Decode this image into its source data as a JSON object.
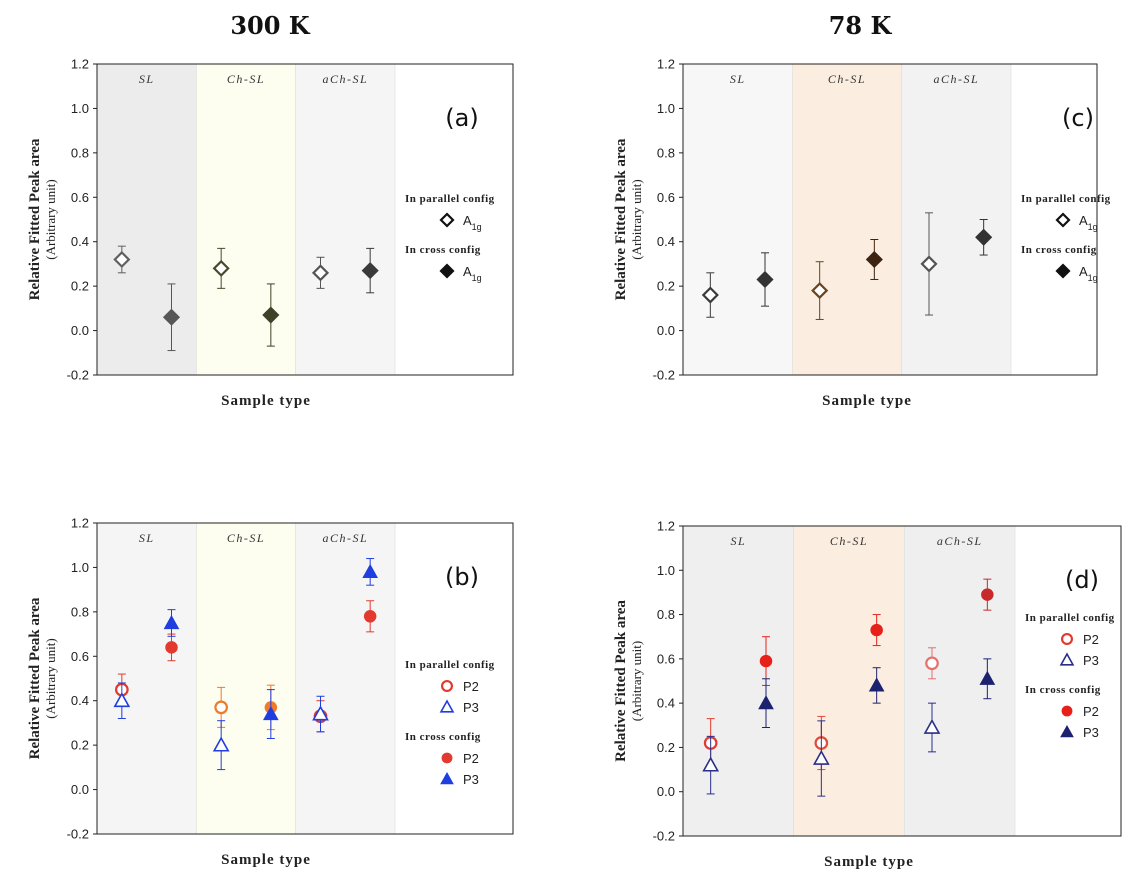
{
  "column_titles": [
    "300 K",
    "78 K"
  ],
  "chart_data": [
    {
      "panel": "(a)",
      "type": "scatter",
      "ylabel": "Relative Fitted Peak area",
      "ylabel_sub": "(Arbitrary unit)",
      "xlabel": "Sample type",
      "ylim": [
        -0.2,
        1.2
      ],
      "yticks": [
        "-0.2",
        "0.0",
        "0.2",
        "0.4",
        "0.6",
        "0.8",
        "1.0",
        "1.2"
      ],
      "regions": [
        {
          "label": "SL",
          "color": "#ececec"
        },
        {
          "label": "Ch-SL",
          "color": "#fdfdf0"
        },
        {
          "label": "aCh-SL",
          "color": "#f5f5f5"
        }
      ],
      "legend": {
        "groups": [
          {
            "heading": "In parallel config",
            "entries": [
              {
                "label": "A",
                "sub": "1g",
                "marker": "diamond-open",
                "color": "#111111"
              }
            ]
          },
          {
            "heading": "In cross config",
            "entries": [
              {
                "label": "A",
                "sub": "1g",
                "marker": "diamond-filled",
                "color": "#111111"
              }
            ]
          }
        ]
      },
      "series": [
        {
          "marker": "diamond-open",
          "points": [
            {
              "pos": 0.25,
              "y": 0.32,
              "err": 0.06,
              "color": "#606060"
            },
            {
              "pos": 1.25,
              "y": 0.28,
              "err": 0.09,
              "color": "#474a2a"
            },
            {
              "pos": 2.25,
              "y": 0.26,
              "err": 0.07,
              "color": "#555555"
            }
          ]
        },
        {
          "marker": "diamond-filled",
          "points": [
            {
              "pos": 0.75,
              "y": 0.06,
              "err": 0.15,
              "color": "#575757"
            },
            {
              "pos": 1.75,
              "y": 0.07,
              "err": 0.14,
              "color": "#3e4228"
            },
            {
              "pos": 2.75,
              "y": 0.27,
              "err": 0.1,
              "color": "#3a3a3a"
            }
          ]
        }
      ]
    },
    {
      "panel": "(b)",
      "type": "scatter",
      "ylabel": "Relative Fitted Peak area",
      "ylabel_sub": "(Arbitrary unit)",
      "xlabel": "Sample type",
      "ylim": [
        -0.2,
        1.2
      ],
      "yticks": [
        "-0.2",
        "0.0",
        "0.2",
        "0.4",
        "0.6",
        "0.8",
        "1.0",
        "1.2"
      ],
      "regions": [
        {
          "label": "SL",
          "color": "#f5f5f5"
        },
        {
          "label": "Ch-SL",
          "color": "#fdfdf0"
        },
        {
          "label": "aCh-SL",
          "color": "#f5f5f5"
        }
      ],
      "legend": {
        "groups": [
          {
            "heading": "In parallel config",
            "entries": [
              {
                "label": "P2",
                "marker": "circle-open",
                "color": "#e23a2e"
              },
              {
                "label": "P3",
                "marker": "triangle-open",
                "color": "#1f3ee0"
              }
            ]
          },
          {
            "heading": "In cross config",
            "entries": [
              {
                "label": "P2",
                "marker": "circle-filled",
                "color": "#e23a2e"
              },
              {
                "label": "P3",
                "marker": "triangle-filled",
                "color": "#1f3ee0"
              }
            ]
          }
        ]
      },
      "series": [
        {
          "name": "P2",
          "marker": "circle-open",
          "points": [
            {
              "pos": 0.25,
              "y": 0.45,
              "err": 0.07,
              "color": "#e23a2e"
            },
            {
              "pos": 1.25,
              "y": 0.37,
              "err": 0.09,
              "color": "#f07a2a"
            },
            {
              "pos": 2.25,
              "y": 0.33,
              "err": 0.07,
              "color": "#e23a2e"
            }
          ]
        },
        {
          "name": "P3",
          "marker": "triangle-open",
          "points": [
            {
              "pos": 0.25,
              "y": 0.4,
              "err": 0.08,
              "color": "#1f3ee0"
            },
            {
              "pos": 1.25,
              "y": 0.2,
              "err": 0.11,
              "color": "#1f3ee0"
            },
            {
              "pos": 2.25,
              "y": 0.34,
              "err": 0.08,
              "color": "#1f3ee0"
            }
          ]
        },
        {
          "name": "P2",
          "marker": "circle-filled",
          "points": [
            {
              "pos": 0.75,
              "y": 0.64,
              "err": 0.06,
              "color": "#e23a2e"
            },
            {
              "pos": 1.75,
              "y": 0.37,
              "err": 0.1,
              "color": "#f07a2a"
            },
            {
              "pos": 2.75,
              "y": 0.78,
              "err": 0.07,
              "color": "#e23a2e"
            }
          ]
        },
        {
          "name": "P3",
          "marker": "triangle-filled",
          "points": [
            {
              "pos": 0.75,
              "y": 0.75,
              "err": 0.06,
              "color": "#1f3ee0"
            },
            {
              "pos": 1.75,
              "y": 0.34,
              "err": 0.11,
              "color": "#1f3ee0"
            },
            {
              "pos": 2.75,
              "y": 0.98,
              "err": 0.06,
              "color": "#1f3ee0"
            }
          ]
        }
      ]
    },
    {
      "panel": "(c)",
      "type": "scatter",
      "ylabel": "Relative Fitted Peak area",
      "ylabel_sub": "(Arbitrary unit)",
      "xlabel": "Sample type",
      "ylim": [
        -0.2,
        1.2
      ],
      "yticks": [
        "-0.2",
        "0.0",
        "0.2",
        "0.4",
        "0.6",
        "0.8",
        "1.0",
        "1.2"
      ],
      "regions": [
        {
          "label": "SL",
          "color": "#f7f7f7"
        },
        {
          "label": "Ch-SL",
          "color": "#fbeee0"
        },
        {
          "label": "aCh-SL",
          "color": "#f2f2f2"
        }
      ],
      "legend": {
        "groups": [
          {
            "heading": "In parallel config",
            "entries": [
              {
                "label": "A",
                "sub": "1g",
                "marker": "diamond-open",
                "color": "#111111"
              }
            ]
          },
          {
            "heading": "In cross config",
            "entries": [
              {
                "label": "A",
                "sub": "1g",
                "marker": "diamond-filled",
                "color": "#111111"
              }
            ]
          }
        ]
      },
      "series": [
        {
          "marker": "diamond-open",
          "points": [
            {
              "pos": 0.25,
              "y": 0.16,
              "err": 0.1,
              "color": "#3a3a3a"
            },
            {
              "pos": 1.25,
              "y": 0.18,
              "err": 0.13,
              "color": "#6b4420"
            },
            {
              "pos": 2.25,
              "y": 0.3,
              "err": 0.23,
              "color": "#555555"
            }
          ]
        },
        {
          "marker": "diamond-filled",
          "points": [
            {
              "pos": 0.75,
              "y": 0.23,
              "err": 0.12,
              "color": "#333333"
            },
            {
              "pos": 1.75,
              "y": 0.32,
              "err": 0.09,
              "color": "#3e2410"
            },
            {
              "pos": 2.75,
              "y": 0.42,
              "err": 0.08,
              "color": "#333333"
            }
          ]
        }
      ]
    },
    {
      "panel": "(d)",
      "type": "scatter",
      "ylabel": "Relative Fitted Peak area",
      "ylabel_sub": "(Arbitrary unit)",
      "xlabel": "Sample type",
      "ylim": [
        -0.2,
        1.2
      ],
      "yticks": [
        "-0.2",
        "0.0",
        "0.2",
        "0.4",
        "0.6",
        "0.8",
        "1.0",
        "1.2"
      ],
      "regions": [
        {
          "label": "SL",
          "color": "#efefef"
        },
        {
          "label": "Ch-SL",
          "color": "#fbeee0"
        },
        {
          "label": "aCh-SL",
          "color": "#efefef"
        }
      ],
      "legend": {
        "groups": [
          {
            "heading": "In parallel config",
            "entries": [
              {
                "label": "P2",
                "marker": "circle-open",
                "color": "#e23a2e"
              },
              {
                "label": "P3",
                "marker": "triangle-open",
                "color": "#2a2f8a"
              }
            ]
          },
          {
            "heading": "In cross config",
            "entries": [
              {
                "label": "P2",
                "marker": "circle-filled",
                "color": "#e8201a"
              },
              {
                "label": "P3",
                "marker": "triangle-filled",
                "color": "#1c2270"
              }
            ]
          }
        ]
      },
      "series": [
        {
          "name": "P2",
          "marker": "circle-open",
          "points": [
            {
              "pos": 0.25,
              "y": 0.22,
              "err": 0.11,
              "color": "#e23a2e"
            },
            {
              "pos": 1.25,
              "y": 0.22,
              "err": 0.12,
              "color": "#e24a3a"
            },
            {
              "pos": 2.25,
              "y": 0.58,
              "err": 0.07,
              "color": "#e47070"
            }
          ]
        },
        {
          "name": "P3",
          "marker": "triangle-open",
          "points": [
            {
              "pos": 0.25,
              "y": 0.12,
              "err": 0.13,
              "color": "#2a2f8a"
            },
            {
              "pos": 1.25,
              "y": 0.15,
              "err": 0.17,
              "color": "#2a2f8a"
            },
            {
              "pos": 2.25,
              "y": 0.29,
              "err": 0.11,
              "color": "#2a2f8a"
            }
          ]
        },
        {
          "name": "P2",
          "marker": "circle-filled",
          "points": [
            {
              "pos": 0.75,
              "y": 0.59,
              "err": 0.11,
              "color": "#e8201a"
            },
            {
              "pos": 1.75,
              "y": 0.73,
              "err": 0.07,
              "color": "#e8201a"
            },
            {
              "pos": 2.75,
              "y": 0.89,
              "err": 0.07,
              "color": "#c82a2a"
            }
          ]
        },
        {
          "name": "P3",
          "marker": "triangle-filled",
          "points": [
            {
              "pos": 0.75,
              "y": 0.4,
              "err": 0.11,
              "color": "#1c2270"
            },
            {
              "pos": 1.75,
              "y": 0.48,
              "err": 0.08,
              "color": "#1c2270"
            },
            {
              "pos": 2.75,
              "y": 0.51,
              "err": 0.09,
              "color": "#1c2270"
            }
          ]
        }
      ]
    }
  ]
}
